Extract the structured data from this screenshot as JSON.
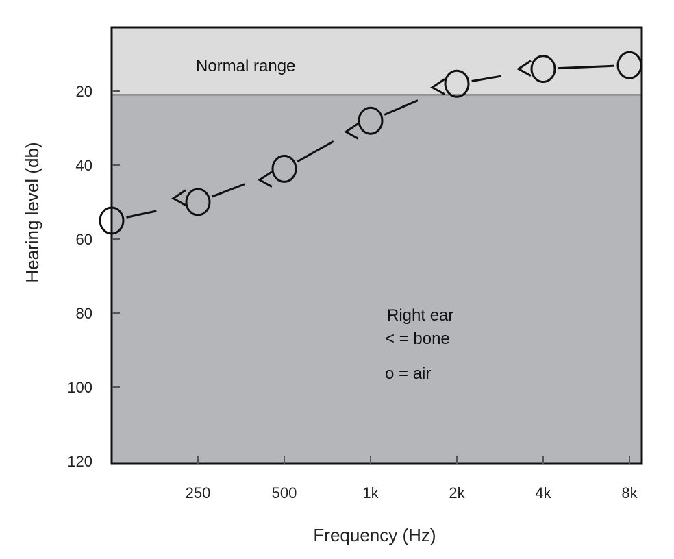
{
  "chart_data": {
    "type": "line",
    "title": "",
    "xlabel": "Frequency (Hz)",
    "ylabel": "Hearing level (db)",
    "x_scale": "log2",
    "x": [
      125,
      250,
      500,
      1000,
      2000,
      4000,
      8000
    ],
    "x_tick_labels": [
      "",
      "250",
      "500",
      "1k",
      "2k",
      "4k",
      "8k"
    ],
    "y_ticks": [
      20,
      40,
      60,
      80,
      100,
      120
    ],
    "y_tick_labels": [
      "20",
      "40",
      "60",
      "80",
      "100",
      "120"
    ],
    "ylim": [
      3,
      120
    ],
    "y_inverted": true,
    "grid": false,
    "normal_range": {
      "label": "Normal range",
      "from": 3,
      "to": 21
    },
    "series": [
      {
        "name": "air",
        "marker": "circle",
        "x": [
          125,
          250,
          500,
          1000,
          2000,
          4000,
          8000
        ],
        "values": [
          55,
          50,
          41,
          28,
          18,
          14,
          13
        ]
      },
      {
        "name": "bone",
        "marker": "<",
        "x": [
          250,
          500,
          1000,
          2000,
          4000
        ],
        "values": [
          49,
          44,
          31,
          19,
          14
        ]
      }
    ],
    "legend": {
      "title": "Right ear",
      "entries": [
        "< = bone",
        "o = air"
      ],
      "placement": "lower-right"
    },
    "colors": {
      "plot_bg": "#b5b6b9",
      "normal_bg": "#dcdcdc",
      "ink": "#111111"
    }
  }
}
